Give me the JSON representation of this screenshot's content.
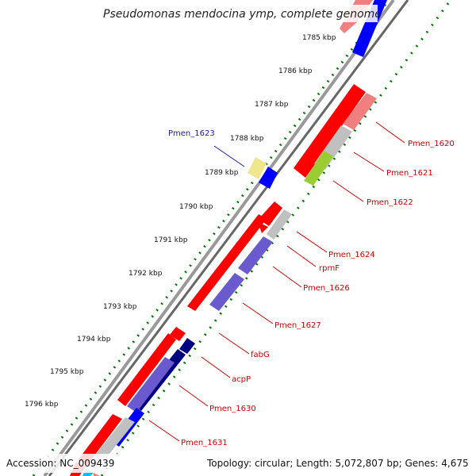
{
  "title": "Pseudomonas mendocina ymp, complete genome",
  "accession_label": "Accession: NC_009439",
  "summary_label": "Topology: circular; Length: 5,072,807 bp; Genes: 4,675",
  "ticks": [
    "1785 kbp",
    "1786 kbp",
    "1787 kbp",
    "1788 kbp",
    "1789 kbp",
    "1790 kbp",
    "1791 kbp",
    "1792 kbp",
    "1793 kbp",
    "1794 kbp",
    "1795 kbp",
    "1796 kbp"
  ],
  "genes": [
    "Pmen_1620",
    "Pmen_1621",
    "Pmen_1622",
    "Pmen_1623",
    "Pmen_1624",
    "rpmF",
    "Pmen_1626",
    "Pmen_1627",
    "fabG",
    "acpP",
    "Pmen_1630",
    "Pmen_1631"
  ],
  "colors": {
    "cds": "#ff0000",
    "cds_light": "#f08080",
    "blue": "#0000ff",
    "navy": "#000080",
    "slate": "#6a5acd",
    "gray": "#c0c0c0",
    "lime": "#9acd32",
    "khaki": "#f0e68c",
    "cyan": "#00bfff",
    "tick_green": "#007700",
    "backbone": "#888888",
    "label_red": "#cc0000",
    "label_blue": "#1a1aa0"
  }
}
